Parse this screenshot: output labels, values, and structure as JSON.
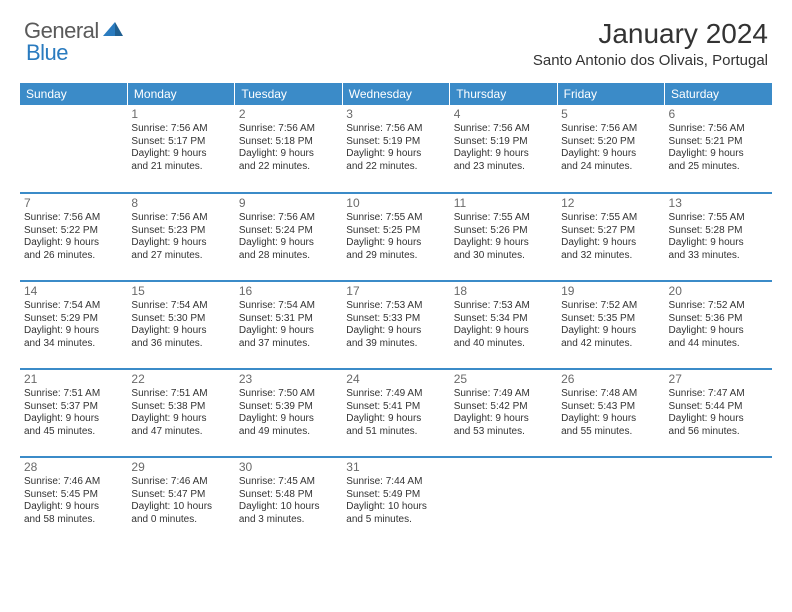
{
  "logo": {
    "part1": "General",
    "part2": "Blue"
  },
  "title": "January 2024",
  "location": "Santo Antonio dos Olivais, Portugal",
  "colors": {
    "header_bg": "#3b8bc8",
    "header_text": "#ffffff",
    "row_divider": "#3b8bc8",
    "body_text": "#333333",
    "daynum_text": "#6a6a6a",
    "logo_gray": "#5a5a5a",
    "logo_blue": "#2a7bbf",
    "page_bg": "#ffffff"
  },
  "typography": {
    "title_fontsize": 28,
    "location_fontsize": 15,
    "header_fontsize": 12,
    "daynum_fontsize": 12,
    "cell_fontsize": 10
  },
  "day_headers": [
    "Sunday",
    "Monday",
    "Tuesday",
    "Wednesday",
    "Thursday",
    "Friday",
    "Saturday"
  ],
  "weeks": [
    [
      null,
      {
        "n": "1",
        "sr": "Sunrise: 7:56 AM",
        "ss": "Sunset: 5:17 PM",
        "d1": "Daylight: 9 hours",
        "d2": "and 21 minutes."
      },
      {
        "n": "2",
        "sr": "Sunrise: 7:56 AM",
        "ss": "Sunset: 5:18 PM",
        "d1": "Daylight: 9 hours",
        "d2": "and 22 minutes."
      },
      {
        "n": "3",
        "sr": "Sunrise: 7:56 AM",
        "ss": "Sunset: 5:19 PM",
        "d1": "Daylight: 9 hours",
        "d2": "and 22 minutes."
      },
      {
        "n": "4",
        "sr": "Sunrise: 7:56 AM",
        "ss": "Sunset: 5:19 PM",
        "d1": "Daylight: 9 hours",
        "d2": "and 23 minutes."
      },
      {
        "n": "5",
        "sr": "Sunrise: 7:56 AM",
        "ss": "Sunset: 5:20 PM",
        "d1": "Daylight: 9 hours",
        "d2": "and 24 minutes."
      },
      {
        "n": "6",
        "sr": "Sunrise: 7:56 AM",
        "ss": "Sunset: 5:21 PM",
        "d1": "Daylight: 9 hours",
        "d2": "and 25 minutes."
      }
    ],
    [
      {
        "n": "7",
        "sr": "Sunrise: 7:56 AM",
        "ss": "Sunset: 5:22 PM",
        "d1": "Daylight: 9 hours",
        "d2": "and 26 minutes."
      },
      {
        "n": "8",
        "sr": "Sunrise: 7:56 AM",
        "ss": "Sunset: 5:23 PM",
        "d1": "Daylight: 9 hours",
        "d2": "and 27 minutes."
      },
      {
        "n": "9",
        "sr": "Sunrise: 7:56 AM",
        "ss": "Sunset: 5:24 PM",
        "d1": "Daylight: 9 hours",
        "d2": "and 28 minutes."
      },
      {
        "n": "10",
        "sr": "Sunrise: 7:55 AM",
        "ss": "Sunset: 5:25 PM",
        "d1": "Daylight: 9 hours",
        "d2": "and 29 minutes."
      },
      {
        "n": "11",
        "sr": "Sunrise: 7:55 AM",
        "ss": "Sunset: 5:26 PM",
        "d1": "Daylight: 9 hours",
        "d2": "and 30 minutes."
      },
      {
        "n": "12",
        "sr": "Sunrise: 7:55 AM",
        "ss": "Sunset: 5:27 PM",
        "d1": "Daylight: 9 hours",
        "d2": "and 32 minutes."
      },
      {
        "n": "13",
        "sr": "Sunrise: 7:55 AM",
        "ss": "Sunset: 5:28 PM",
        "d1": "Daylight: 9 hours",
        "d2": "and 33 minutes."
      }
    ],
    [
      {
        "n": "14",
        "sr": "Sunrise: 7:54 AM",
        "ss": "Sunset: 5:29 PM",
        "d1": "Daylight: 9 hours",
        "d2": "and 34 minutes."
      },
      {
        "n": "15",
        "sr": "Sunrise: 7:54 AM",
        "ss": "Sunset: 5:30 PM",
        "d1": "Daylight: 9 hours",
        "d2": "and 36 minutes."
      },
      {
        "n": "16",
        "sr": "Sunrise: 7:54 AM",
        "ss": "Sunset: 5:31 PM",
        "d1": "Daylight: 9 hours",
        "d2": "and 37 minutes."
      },
      {
        "n": "17",
        "sr": "Sunrise: 7:53 AM",
        "ss": "Sunset: 5:33 PM",
        "d1": "Daylight: 9 hours",
        "d2": "and 39 minutes."
      },
      {
        "n": "18",
        "sr": "Sunrise: 7:53 AM",
        "ss": "Sunset: 5:34 PM",
        "d1": "Daylight: 9 hours",
        "d2": "and 40 minutes."
      },
      {
        "n": "19",
        "sr": "Sunrise: 7:52 AM",
        "ss": "Sunset: 5:35 PM",
        "d1": "Daylight: 9 hours",
        "d2": "and 42 minutes."
      },
      {
        "n": "20",
        "sr": "Sunrise: 7:52 AM",
        "ss": "Sunset: 5:36 PM",
        "d1": "Daylight: 9 hours",
        "d2": "and 44 minutes."
      }
    ],
    [
      {
        "n": "21",
        "sr": "Sunrise: 7:51 AM",
        "ss": "Sunset: 5:37 PM",
        "d1": "Daylight: 9 hours",
        "d2": "and 45 minutes."
      },
      {
        "n": "22",
        "sr": "Sunrise: 7:51 AM",
        "ss": "Sunset: 5:38 PM",
        "d1": "Daylight: 9 hours",
        "d2": "and 47 minutes."
      },
      {
        "n": "23",
        "sr": "Sunrise: 7:50 AM",
        "ss": "Sunset: 5:39 PM",
        "d1": "Daylight: 9 hours",
        "d2": "and 49 minutes."
      },
      {
        "n": "24",
        "sr": "Sunrise: 7:49 AM",
        "ss": "Sunset: 5:41 PM",
        "d1": "Daylight: 9 hours",
        "d2": "and 51 minutes."
      },
      {
        "n": "25",
        "sr": "Sunrise: 7:49 AM",
        "ss": "Sunset: 5:42 PM",
        "d1": "Daylight: 9 hours",
        "d2": "and 53 minutes."
      },
      {
        "n": "26",
        "sr": "Sunrise: 7:48 AM",
        "ss": "Sunset: 5:43 PM",
        "d1": "Daylight: 9 hours",
        "d2": "and 55 minutes."
      },
      {
        "n": "27",
        "sr": "Sunrise: 7:47 AM",
        "ss": "Sunset: 5:44 PM",
        "d1": "Daylight: 9 hours",
        "d2": "and 56 minutes."
      }
    ],
    [
      {
        "n": "28",
        "sr": "Sunrise: 7:46 AM",
        "ss": "Sunset: 5:45 PM",
        "d1": "Daylight: 9 hours",
        "d2": "and 58 minutes."
      },
      {
        "n": "29",
        "sr": "Sunrise: 7:46 AM",
        "ss": "Sunset: 5:47 PM",
        "d1": "Daylight: 10 hours",
        "d2": "and 0 minutes."
      },
      {
        "n": "30",
        "sr": "Sunrise: 7:45 AM",
        "ss": "Sunset: 5:48 PM",
        "d1": "Daylight: 10 hours",
        "d2": "and 3 minutes."
      },
      {
        "n": "31",
        "sr": "Sunrise: 7:44 AM",
        "ss": "Sunset: 5:49 PM",
        "d1": "Daylight: 10 hours",
        "d2": "and 5 minutes."
      },
      null,
      null,
      null
    ]
  ]
}
